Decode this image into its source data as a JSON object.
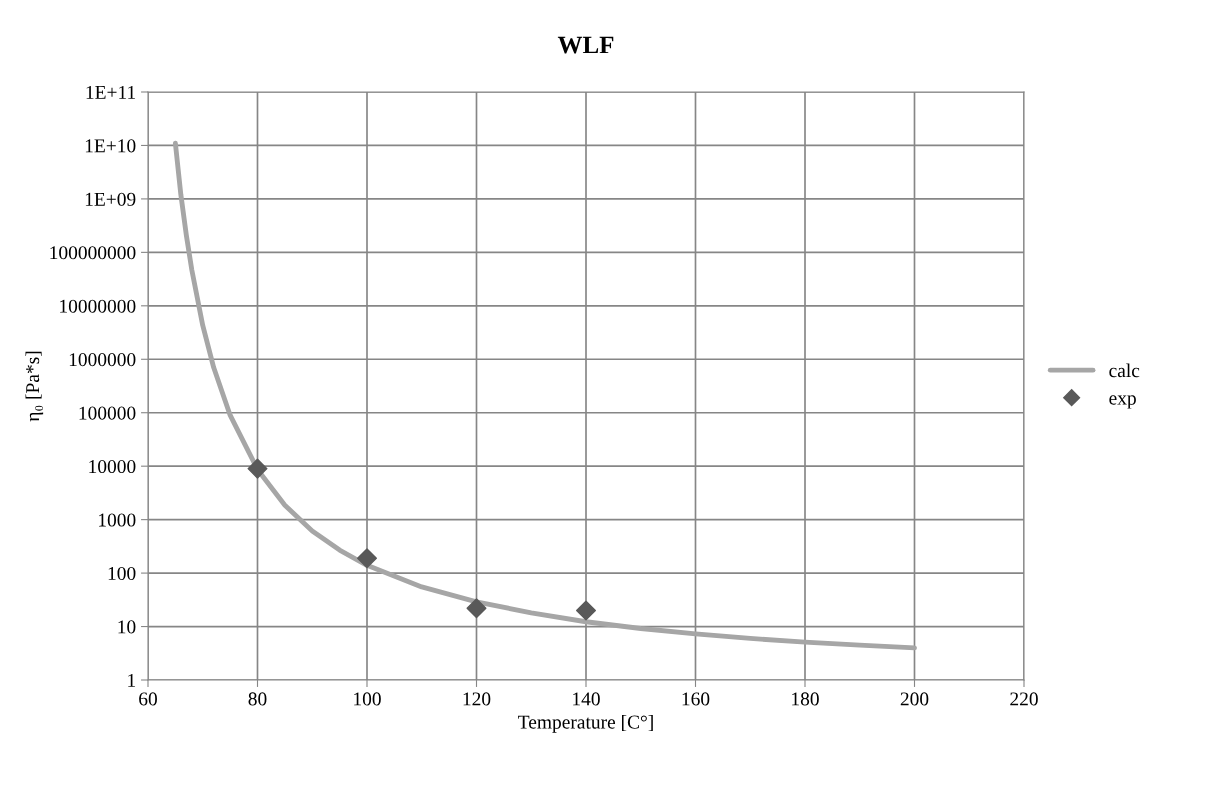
{
  "chart_data": {
    "type": "line",
    "title": "WLF",
    "xlabel": "Temperature [C°]",
    "ylabel": "η₀ [Pa*s]",
    "series": [
      {
        "name": "calc",
        "color": "#a6a6a6",
        "marker": "none",
        "line_style": "solid",
        "x": [
          65,
          66,
          67,
          68,
          70,
          72,
          75,
          80,
          85,
          90,
          95,
          100,
          110,
          120,
          130,
          140,
          150,
          160,
          170,
          180,
          190,
          200
        ],
        "values": [
          11000000000,
          1200000000,
          210000000,
          47000000,
          4300000,
          700000,
          90000,
          8700,
          1860,
          615,
          270,
          140,
          55,
          29,
          18,
          12.3,
          9.2,
          7.3,
          6.0,
          5.1,
          4.5,
          4.0
        ]
      },
      {
        "name": "exp",
        "type": "scatter",
        "color": "#595959",
        "marker": "diamond",
        "x": [
          80,
          100,
          120,
          140
        ],
        "values": [
          9000,
          190,
          22,
          20
        ]
      }
    ],
    "log": "y",
    "xlim": [
      60,
      220
    ],
    "xticks": [
      60,
      80,
      100,
      120,
      140,
      160,
      180,
      200,
      220
    ],
    "ylim": [
      1,
      100000000000
    ],
    "yticks": [
      1,
      10,
      100,
      1000,
      10000,
      100000,
      1000000,
      10000000,
      100000000,
      {
        "value": 1000000000,
        "label": "1E+09"
      },
      {
        "value": 10000000000,
        "label": "1E+10"
      },
      {
        "value": 100000000000,
        "label": "1E+11"
      }
    ],
    "grid": true,
    "legend": "right"
  }
}
